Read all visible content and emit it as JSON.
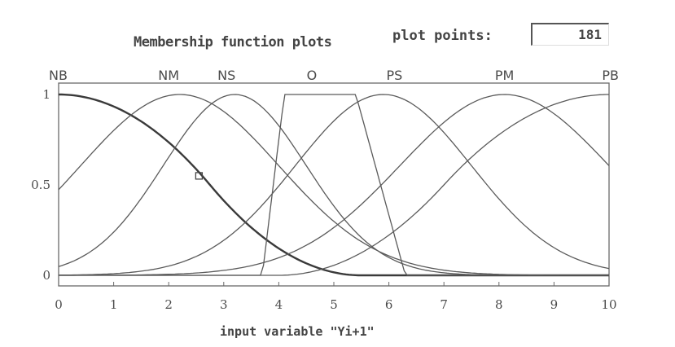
{
  "header": {
    "title": "Membership function plots",
    "plot_points_label": "plot points:",
    "plot_points_value": "181"
  },
  "chart_data": {
    "type": "line",
    "xlabel": "input variable \"Yi+1\"",
    "ylabel": "",
    "xlim": [
      0,
      10
    ],
    "ylim": [
      0,
      1
    ],
    "x_ticks": [
      "0",
      "1",
      "2",
      "3",
      "4",
      "5",
      "6",
      "7",
      "8",
      "9",
      "10"
    ],
    "y_ticks": [
      "0",
      "0.5",
      "1"
    ],
    "grid": false,
    "series": [
      {
        "name": "NB",
        "shape": "z",
        "params": [
          0,
          5.5
        ],
        "label_x": 0,
        "selected": true
      },
      {
        "name": "NM",
        "shape": "gauss",
        "params": [
          2.2,
          1.8
        ],
        "label_x": 2.0
      },
      {
        "name": "NS",
        "shape": "gauss",
        "params": [
          3.2,
          1.3
        ],
        "label_x": 3.05
      },
      {
        "name": "O",
        "shape": "trap",
        "params": [
          3.7,
          4.1,
          5.4,
          6.3
        ],
        "label_x": 4.6
      },
      {
        "name": "PS",
        "shape": "gauss",
        "params": [
          5.9,
          1.6
        ],
        "label_x": 6.1
      },
      {
        "name": "PM",
        "shape": "gauss",
        "params": [
          8.1,
          1.9
        ],
        "label_x": 8.1
      },
      {
        "name": "PB",
        "shape": "s",
        "params": [
          4.0,
          10.0
        ],
        "label_x": 10
      }
    ],
    "selected_marker": {
      "x": 2.55,
      "y": 0.55
    }
  }
}
